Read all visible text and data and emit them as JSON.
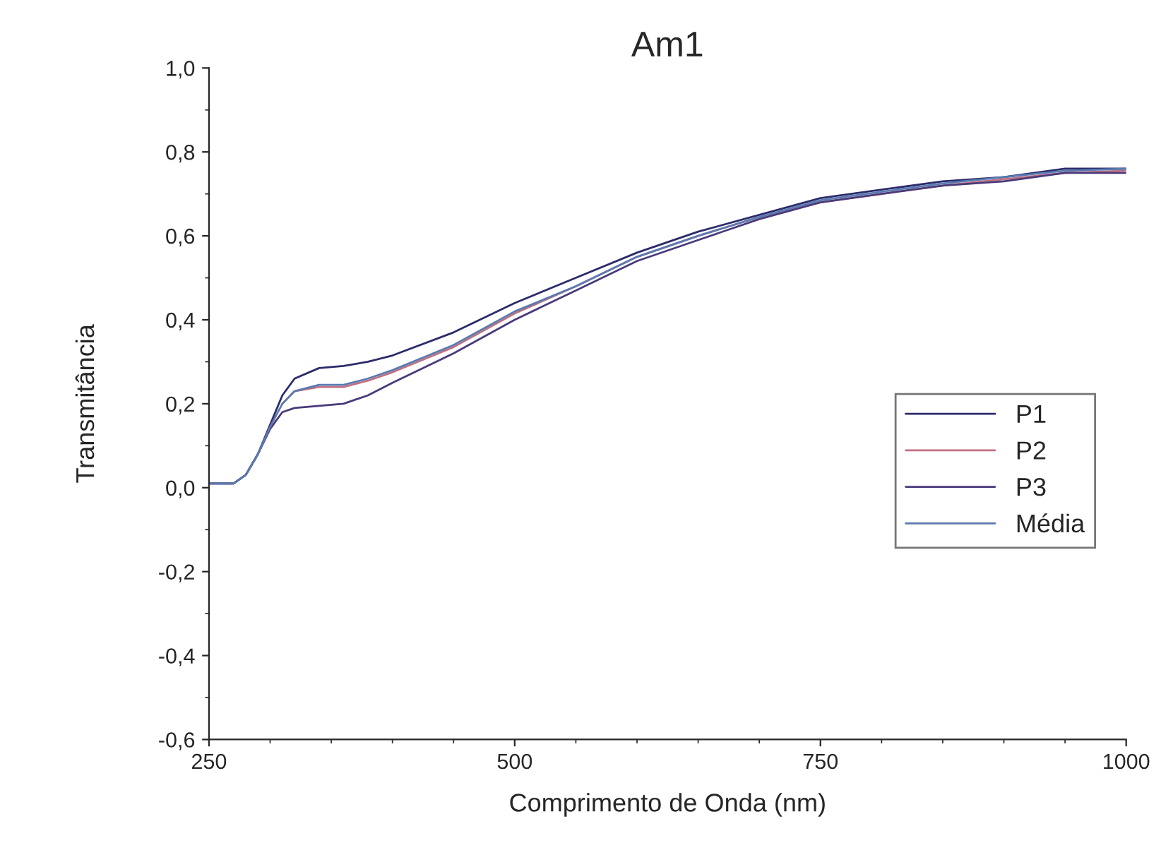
{
  "chart_data": {
    "type": "line",
    "title": "Am1",
    "xlabel": "Comprimento de Onda (nm)",
    "ylabel": "Transmitância",
    "x": [
      250,
      270,
      280,
      290,
      300,
      310,
      320,
      340,
      360,
      380,
      400,
      450,
      500,
      550,
      600,
      650,
      700,
      750,
      800,
      850,
      900,
      950,
      1000
    ],
    "series": [
      {
        "name": "P1",
        "color": "#2b2b6b",
        "values": [
          0.01,
          0.01,
          0.03,
          0.08,
          0.15,
          0.22,
          0.26,
          0.285,
          0.29,
          0.3,
          0.315,
          0.37,
          0.44,
          0.5,
          0.56,
          0.61,
          0.65,
          0.69,
          0.71,
          0.73,
          0.74,
          0.76,
          0.76
        ]
      },
      {
        "name": "P2",
        "color": "#c07080",
        "values": [
          null,
          null,
          null,
          null,
          null,
          0.2,
          0.23,
          0.24,
          0.24,
          0.255,
          0.275,
          0.335,
          0.415,
          0.48,
          0.55,
          0.6,
          0.645,
          0.68,
          0.7,
          0.72,
          0.735,
          0.75,
          0.755
        ]
      },
      {
        "name": "P3",
        "color": "#4a3a7a",
        "values": [
          0.01,
          0.01,
          0.03,
          0.08,
          0.14,
          0.18,
          0.19,
          0.195,
          0.2,
          0.22,
          0.25,
          0.32,
          0.4,
          0.47,
          0.54,
          0.59,
          0.64,
          0.68,
          0.7,
          0.72,
          0.73,
          0.75,
          0.75
        ]
      },
      {
        "name": "Média",
        "color": "#5a7ab0",
        "values": [
          0.01,
          0.01,
          0.03,
          0.08,
          0.145,
          0.2,
          0.23,
          0.245,
          0.245,
          0.26,
          0.28,
          0.34,
          0.42,
          0.48,
          0.55,
          0.6,
          0.645,
          0.685,
          0.705,
          0.725,
          0.74,
          0.755,
          0.76
        ]
      }
    ],
    "xlim": [
      250,
      1000
    ],
    "xticks": [
      250,
      500,
      750,
      1000
    ],
    "ylim": [
      -0.6,
      1.0
    ],
    "yticks": [
      {
        "value": -0.6,
        "label": "-0,6"
      },
      {
        "value": -0.4,
        "label": "-0,4"
      },
      {
        "value": -0.2,
        "label": "-0,2"
      },
      {
        "value": 0.0,
        "label": "0,0"
      },
      {
        "value": 0.2,
        "label": "0,2"
      },
      {
        "value": 0.4,
        "label": "0,4"
      },
      {
        "value": 0.6,
        "label": "0,6"
      },
      {
        "value": 0.8,
        "label": "0,8"
      },
      {
        "value": 1.0,
        "label": "1,0"
      }
    ],
    "legend": "right",
    "grid": false
  }
}
